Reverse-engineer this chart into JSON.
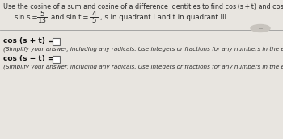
{
  "bg_color": "#e8e5e0",
  "title_line": "Use the cosine of a sum and cosine of a difference identities to find cos (s + t) and cos (s − t).",
  "given_pre": "sin s =",
  "given_frac1_num": "5",
  "given_frac1_den": "13",
  "given_mid": "and sin t = −",
  "given_frac2_num": "4",
  "given_frac2_den": "5",
  "given_post": ", s in quadrant I and t in quadrant III",
  "cos_sum_label": "cos (s + t) =",
  "cos_diff_label": "cos (s − t) =",
  "simplify_note": "(Simplify your answer, including any radicals. Use integers or fractions for any numbers in the expression.)",
  "font_color": "#2a2a2a",
  "line_color": "#999999",
  "bold_label_color": "#111111"
}
